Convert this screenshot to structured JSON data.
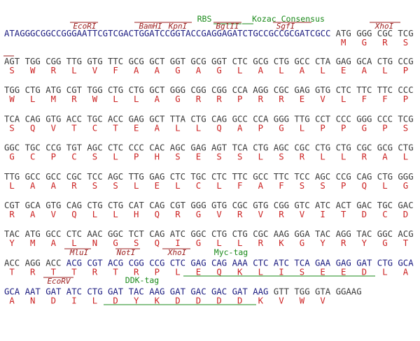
{
  "sequence_rows": [
    {
      "groups": [
        {
          "color": "#1c1c80",
          "codons": [
            "ATAGGGCGGCCGGGAATTCGTCGACTGGATCCGGTACCGAGGAGATCTGCCGCCGCGATCGCC"
          ]
        },
        {
          "color": "#3a3a3a",
          "codons": [
            "ATG",
            "GGG",
            "CGC",
            "TCG"
          ]
        }
      ],
      "aa": [
        null,
        "M",
        "G",
        "R",
        "S"
      ],
      "features": [
        {
          "label": "RBS",
          "color": "#1a8a1a"
        },
        {
          "label": "Kozac Consensus",
          "color": "#1a8a1a"
        },
        {
          "label": "EcoRI",
          "color": "#9b1c1c"
        },
        {
          "label": "BamHI",
          "color": "#9b1c1c"
        },
        {
          "label": "KpnI",
          "color": "#9b1c1c"
        },
        {
          "label": "BglII",
          "color": "#9b1c1c"
        },
        {
          "label": "SgfI",
          "color": "#9b1c1c"
        },
        {
          "label": "XhoI",
          "color": "#9b1c1c"
        }
      ]
    },
    {
      "groups": [
        {
          "color": "#3a3a3a",
          "codons": [
            "AGT",
            "TGG",
            "CGG",
            "TTG",
            "GTG",
            "TTC",
            "GCG",
            "GCT",
            "GGT",
            "GCG",
            "GGT",
            "CTC",
            "GCG",
            "CTG",
            "GCC",
            "CTA",
            "GAG",
            "GCA",
            "CTG",
            "CCG"
          ]
        }
      ],
      "aa": [
        "S",
        "W",
        "R",
        "L",
        "V",
        "F",
        "A",
        "A",
        "G",
        "A",
        "G",
        "L",
        "A",
        "L",
        "A",
        "L",
        "E",
        "A",
        "L",
        "P"
      ],
      "features": []
    },
    {
      "groups": [
        {
          "color": "#3a3a3a",
          "codons": [
            "TGG",
            "CTG",
            "ATG",
            "CGT",
            "TGG",
            "CTG",
            "CTG",
            "GCT",
            "GGG",
            "CGG",
            "CGG",
            "CCA",
            "AGG",
            "CGC",
            "GAG",
            "GTG",
            "CTC",
            "TTC",
            "TTC",
            "CCC"
          ]
        }
      ],
      "aa": [
        "W",
        "L",
        "M",
        "R",
        "W",
        "L",
        "L",
        "A",
        "G",
        "R",
        "R",
        "P",
        "R",
        "R",
        "E",
        "V",
        "L",
        "F",
        "F",
        "P"
      ],
      "features": []
    },
    {
      "groups": [
        {
          "color": "#3a3a3a",
          "codons": [
            "TCA",
            "CAG",
            "GTG",
            "ACC",
            "TGC",
            "ACC",
            "GAG",
            "GCT",
            "TTA",
            "CTG",
            "CAG",
            "GCC",
            "CCA",
            "GGG",
            "TTG",
            "CCT",
            "CCC",
            "GGG",
            "CCC",
            "TCG"
          ]
        }
      ],
      "aa": [
        "S",
        "Q",
        "V",
        "T",
        "C",
        "T",
        "E",
        "A",
        "L",
        "L",
        "Q",
        "A",
        "P",
        "G",
        "L",
        "P",
        "P",
        "G",
        "P",
        "S"
      ],
      "features": []
    },
    {
      "groups": [
        {
          "color": "#3a3a3a",
          "codons": [
            "GGC",
            "TGC",
            "CCG",
            "TGT",
            "AGC",
            "CTC",
            "CCC",
            "CAC",
            "AGC",
            "GAG",
            "AGT",
            "TCA",
            "CTG",
            "AGC",
            "CGC",
            "CTG",
            "CTG",
            "CGC",
            "GCG",
            "CTG"
          ]
        }
      ],
      "aa": [
        "G",
        "C",
        "P",
        "C",
        "S",
        "L",
        "P",
        "H",
        "S",
        "E",
        "S",
        "S",
        "L",
        "S",
        "R",
        "L",
        "L",
        "R",
        "A",
        "L"
      ],
      "features": []
    },
    {
      "groups": [
        {
          "color": "#3a3a3a",
          "codons": [
            "TTG",
            "GCC",
            "GCC",
            "CGC",
            "TCC",
            "AGC",
            "TTG",
            "GAG",
            "CTC",
            "TGC",
            "CTC",
            "TTC",
            "GCC",
            "TTC",
            "TCC",
            "AGC",
            "CCG",
            "CAG",
            "CTG",
            "GGG"
          ]
        }
      ],
      "aa": [
        "L",
        "A",
        "A",
        "R",
        "S",
        "S",
        "L",
        "E",
        "L",
        "C",
        "L",
        "F",
        "A",
        "F",
        "S",
        "S",
        "P",
        "Q",
        "L",
        "G"
      ],
      "features": []
    },
    {
      "groups": [
        {
          "color": "#3a3a3a",
          "codons": [
            "CGT",
            "GCA",
            "GTG",
            "CAG",
            "CTG",
            "CTG",
            "CAT",
            "CAG",
            "CGT",
            "GGG",
            "GTG",
            "CGC",
            "GTG",
            "CGG",
            "GTC",
            "ATC",
            "ACT",
            "GAC",
            "TGC",
            "GAC"
          ]
        }
      ],
      "aa": [
        "R",
        "A",
        "V",
        "Q",
        "L",
        "L",
        "H",
        "Q",
        "R",
        "G",
        "V",
        "R",
        "V",
        "R",
        "V",
        "I",
        "T",
        "D",
        "C",
        "D"
      ],
      "features": []
    },
    {
      "groups": [
        {
          "color": "#3a3a3a",
          "codons": [
            "TAC",
            "ATG",
            "GCC",
            "CTC",
            "AAC",
            "GGC",
            "TCT",
            "CAG",
            "ATC",
            "GGC",
            "CTG",
            "CTG",
            "CGC",
            "AAG",
            "GGA",
            "TAC",
            "AGG",
            "TAC",
            "GGC",
            "ACG"
          ]
        }
      ],
      "aa": [
        "Y",
        "M",
        "A",
        "L",
        "N",
        "G",
        "S",
        "Q",
        "I",
        "G",
        "L",
        "L",
        "R",
        "K",
        "G",
        "Y",
        "R",
        "Y",
        "G",
        "T"
      ],
      "features": []
    },
    {
      "groups": [
        {
          "color": "#3a3a3a",
          "codons": [
            "ACC",
            "AGG",
            "ACC"
          ]
        },
        {
          "color": "#1c1c80",
          "codons": [
            "ACG",
            "CGT",
            "ACG",
            "CGG",
            "CCG",
            "CTC",
            "GAG",
            "CAG",
            "AAA",
            "CTC",
            "ATC",
            "TCA",
            "GAA",
            "GAG",
            "GAT",
            "CTG",
            "GCA"
          ]
        }
      ],
      "aa": [
        "T",
        "R",
        "T",
        "T",
        "R",
        "T",
        "R",
        "P",
        "L",
        "E",
        "Q",
        "K",
        "L",
        "I",
        "S",
        "E",
        "E",
        "D",
        "L",
        "A"
      ],
      "features": [
        {
          "label": "MluI",
          "color": "#9b1c1c"
        },
        {
          "label": "NotI",
          "color": "#9b1c1c"
        },
        {
          "label": "XhoI",
          "color": "#9b1c1c"
        },
        {
          "label": "Myc-tag",
          "color": "#1a8a1a"
        }
      ]
    },
    {
      "groups": [
        {
          "color": "#1c1c80",
          "codons": [
            "GCA",
            "AAT",
            "GAT",
            "ATC",
            "CTG",
            "GAT",
            "TAC",
            "AAG",
            "GAT",
            "GAC",
            "GAC",
            "GAT",
            "AAG"
          ]
        },
        {
          "color": "#3a3a3a",
          "codons": [
            "GTT",
            "TGG",
            "GTA",
            "GGAAG"
          ]
        }
      ],
      "aa": [
        "A",
        "N",
        "D",
        "I",
        "L",
        "D",
        "Y",
        "K",
        "D",
        "D",
        "D",
        "D",
        "K",
        "V",
        "W",
        "V",
        null
      ],
      "features": [
        {
          "label": "EcoRV",
          "color": "#9b1c1c"
        },
        {
          "label": "DDK-tag",
          "color": "#1a8a1a"
        }
      ]
    }
  ]
}
